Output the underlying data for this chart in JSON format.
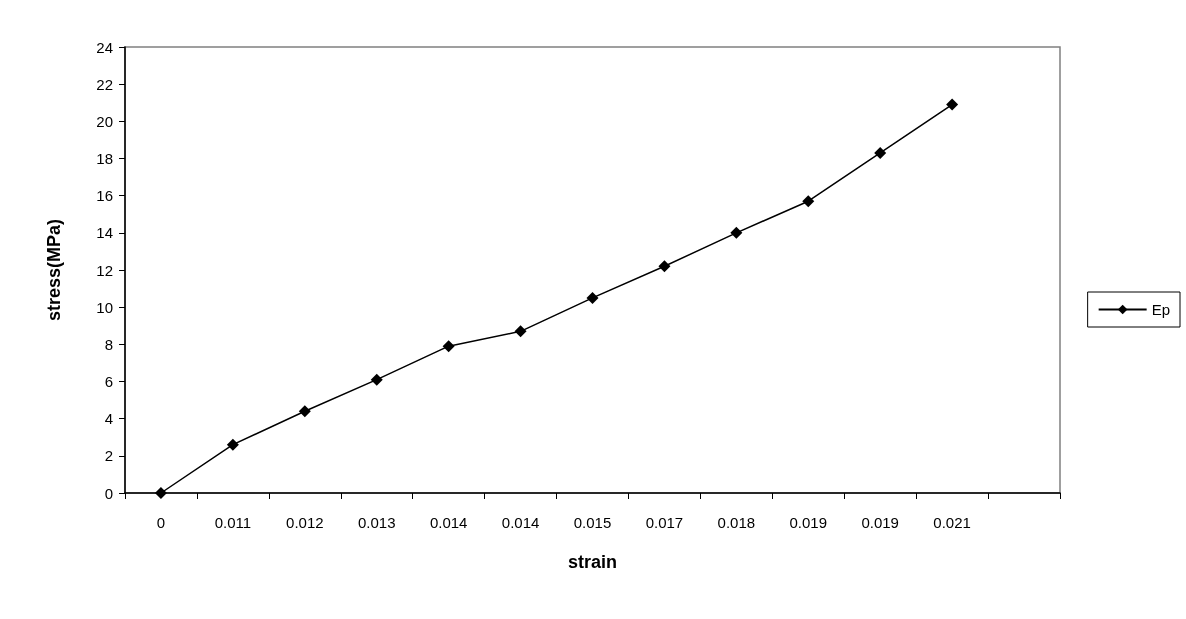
{
  "chart_data": {
    "type": "line",
    "xlabel": "strain",
    "ylabel": "stress(MPa)",
    "categories": [
      "0",
      "0.011",
      "0.012",
      "0.013",
      "0.014",
      "0.014",
      "0.015",
      "0.017",
      "0.018",
      "0.019",
      "0.019",
      "0.021",
      null
    ],
    "series": [
      {
        "name": "Ep",
        "color": "#000000",
        "values": [
          0,
          2.6,
          4.4,
          6.1,
          7.9,
          8.7,
          10.5,
          12.2,
          14.0,
          15.7,
          18.3,
          20.9,
          null
        ]
      }
    ],
    "ylim": [
      0,
      24
    ],
    "yticks": [
      0,
      2,
      4,
      6,
      8,
      10,
      12,
      14,
      16,
      18,
      20,
      22,
      24
    ],
    "grid": false,
    "legend": "right",
    "marker": "diamond",
    "line_style": "solid"
  }
}
